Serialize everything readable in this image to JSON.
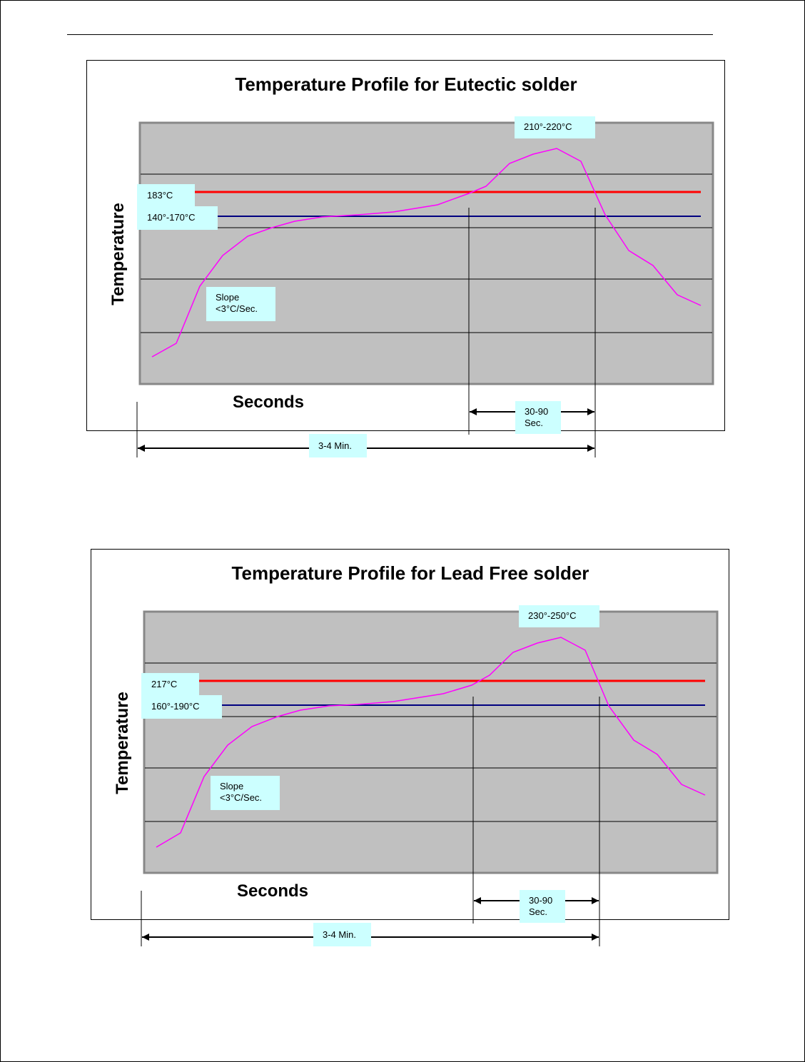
{
  "charts": [
    {
      "title": "Temperature Profile for Eutectic solder",
      "ylabel": "Temperature",
      "xlabel": "Seconds",
      "peak_label": "210°-220°C",
      "liquidus_label": "183°C",
      "soak_label": "140°-170°C",
      "slope_label_line1": "Slope",
      "slope_label_line2": "<3°C/Sec.",
      "tal_label_line1": "30-90",
      "tal_label_line2": "Sec.",
      "total_label": "3-4 Min."
    },
    {
      "title": "Temperature Profile for Lead Free solder",
      "ylabel": "Temperature",
      "xlabel": "Seconds",
      "peak_label": "230°-250°C",
      "liquidus_label": "217°C",
      "soak_label": "160°-190°C",
      "slope_label_line1": "Slope",
      "slope_label_line2": "<3°C/Sec.",
      "tal_label_line1": "30-90",
      "tal_label_line2": "Sec.",
      "total_label": "3-4 Min."
    }
  ],
  "colors": {
    "plot_bg": "#c0c0c0",
    "profile_curve": "#ff00ff",
    "liquidus_line": "#ff0000",
    "soak_line": "#000080",
    "label_bg": "#ccffff"
  }
}
